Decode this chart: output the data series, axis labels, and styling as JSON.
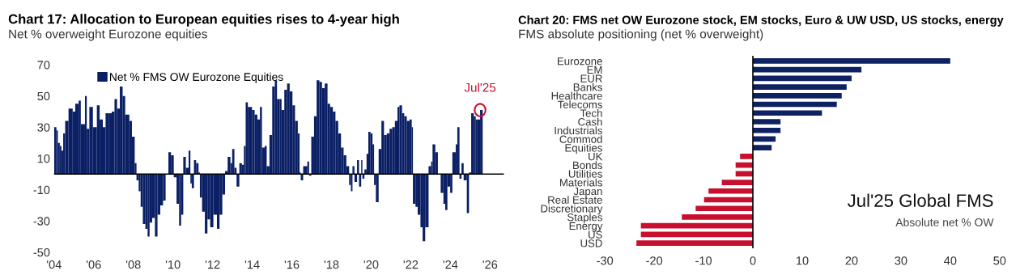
{
  "chart_data": [
    {
      "type": "bar",
      "title": "Chart 17: Allocation to European equities rises to 4-year high",
      "subtitle": "Net % overweight Eurozone equities",
      "x": [
        2004.0,
        2004.12,
        2004.19,
        2004.29,
        2004.37,
        2004.46,
        2004.56,
        2004.73,
        2004.94,
        2005.07,
        2005.24,
        2005.35,
        2005.56,
        2005.65,
        2005.78,
        2005.96,
        2006.16,
        2006.3,
        2006.46,
        2006.6,
        2006.78,
        2006.91,
        2007.05,
        2007.18,
        2007.32,
        2007.46,
        2007.59,
        2007.8,
        2007.93,
        2008.07,
        2008.16,
        2008.27,
        2008.37,
        2008.48,
        2008.61,
        2008.72,
        2008.82,
        2008.95,
        2009.09,
        2009.22,
        2009.36,
        2009.5,
        2009.63,
        2009.77,
        2009.9,
        2010.04,
        2010.18,
        2010.31,
        2010.41,
        2010.52,
        2010.65,
        2010.79,
        2010.88,
        2010.95,
        2011.06,
        2011.17,
        2011.29,
        2011.36,
        2011.47,
        2011.61,
        2011.74,
        2011.88,
        2012.04,
        2012.22,
        2012.35,
        2012.49,
        2012.63,
        2012.76,
        2012.9,
        2012.99,
        2013.1,
        2013.21,
        2013.35,
        2013.48,
        2013.58,
        2013.67,
        2013.78,
        2013.99,
        2014.12,
        2014.26,
        2014.39,
        2014.49,
        2014.63,
        2014.73,
        2014.87,
        2015.01,
        2015.14,
        2015.25,
        2015.39,
        2015.48,
        2015.62,
        2015.76,
        2015.89,
        2016.03,
        2016.16,
        2016.3,
        2016.39,
        2016.45,
        2016.57,
        2016.78,
        2016.87,
        2016.98,
        2017.12,
        2017.25,
        2017.39,
        2017.52,
        2017.66,
        2017.8,
        2017.93,
        2018.07,
        2018.2,
        2018.34,
        2018.48,
        2018.61,
        2018.75,
        2018.89,
        2018.98,
        2019.06,
        2019.16,
        2019.29,
        2019.39,
        2019.5,
        2019.56,
        2019.66,
        2019.77,
        2019.86,
        2019.97,
        2020.07,
        2020.15,
        2020.24,
        2020.38,
        2020.52,
        2020.65,
        2020.79,
        2020.93,
        2021.07,
        2021.2,
        2021.33,
        2021.43,
        2021.56,
        2021.67,
        2021.8,
        2021.94,
        2022.05,
        2022.11,
        2022.24,
        2022.35,
        2022.49,
        2022.6,
        2022.73,
        2022.9,
        2023.03,
        2023.1,
        2023.24,
        2023.37,
        2023.51,
        2023.65,
        2023.74,
        2023.85,
        2023.99,
        2024.1,
        2024.27,
        2024.35,
        2024.46,
        2024.56,
        2024.67,
        2024.83,
        2024.94,
        2025.05,
        2025.18,
        2025.28,
        2025.37,
        2025.5
      ],
      "series": [
        {
          "name": "Net % FMS OW Eurozone Equities",
          "color": "#0b1f65",
          "values": [
            30,
            28,
            20,
            18,
            15,
            26,
            34,
            42,
            40,
            45,
            47,
            32,
            50,
            29,
            43,
            30,
            44,
            35,
            30,
            39,
            39,
            40,
            48,
            42,
            56,
            50,
            38,
            34,
            24,
            7,
            -4,
            -11,
            -21,
            -32,
            -35,
            -40,
            -31,
            -28,
            -40,
            -26,
            -20,
            -17,
            null,
            14,
            12,
            -2,
            -19,
            -33,
            -26,
            11,
            4,
            15,
            -6,
            -9,
            9,
            7,
            1,
            -15,
            -24,
            -38,
            -29,
            -34,
            -26,
            -35,
            -26,
            -13,
            2,
            11,
            7,
            16,
            4,
            -8,
            7,
            6,
            18,
            46,
            43,
            41,
            38,
            35,
            43,
            17,
            18,
            5,
            25,
            56,
            60,
            48,
            48,
            41,
            54,
            58,
            53,
            44,
            34,
            26,
            1,
            -4,
            5,
            8,
            -1,
            24,
            37,
            60,
            59,
            55,
            58,
            45,
            43,
            40,
            34,
            26,
            17,
            12,
            5,
            -7,
            -11,
            5,
            -5,
            9,
            -8,
            9,
            -3,
            3,
            13,
            27,
            26,
            19,
            -7,
            -18,
            16,
            34,
            25,
            26,
            29,
            30,
            34,
            43,
            44,
            39,
            37,
            34,
            35,
            30,
            -19,
            -21,
            -26,
            -34,
            -43,
            -34,
            5,
            8,
            19,
            14,
            null,
            -12,
            -19,
            -23,
            -8,
            -12,
            14,
            19,
            30,
            -3,
            7,
            -4,
            -25,
            1,
            39,
            37,
            35,
            35,
            41
          ]
        }
      ],
      "xlim": [
        2004,
        2026.7
      ],
      "xticks": [
        {
          "value": 2004,
          "label": "'04"
        },
        {
          "value": 2006,
          "label": "'06"
        },
        {
          "value": 2008,
          "label": "'08"
        },
        {
          "value": 2010,
          "label": "'10"
        },
        {
          "value": 2012,
          "label": "'12"
        },
        {
          "value": 2014,
          "label": "'14"
        },
        {
          "value": 2016,
          "label": "'16"
        },
        {
          "value": 2018,
          "label": "'18"
        },
        {
          "value": 2020,
          "label": "'20"
        },
        {
          "value": 2022,
          "label": "'22"
        },
        {
          "value": 2024,
          "label": "'24"
        },
        {
          "value": 2026,
          "label": "'26"
        }
      ],
      "ylim": [
        -50,
        70
      ],
      "yticks": [
        -50,
        -30,
        -10,
        10,
        30,
        50,
        70
      ],
      "legend": "top left",
      "ref_lines": [
        {
          "axis": "y",
          "value": 0,
          "color": "#000000"
        }
      ],
      "annotations": [
        {
          "text": "Jul'25",
          "x": 2025.5,
          "y": 41
        }
      ]
    },
    {
      "type": "bar",
      "orientation": "horizontal",
      "title": "Chart 20: FMS net OW Eurozone stock, EM stocks, Euro & UW USD, US stocks, energy",
      "subtitle": "FMS absolute positioning (net % overweight)",
      "categories": [
        "Eurozone",
        "EM",
        "EUR",
        "Banks",
        "Healthcare",
        "Telecoms",
        "Tech",
        "Cash",
        "Industrials",
        "Commod",
        "Equities",
        "UK",
        "Bonds",
        "Utilities",
        "Materials",
        "Japan",
        "Real Estate",
        "Discretionary",
        "Staples",
        "Energy",
        "US",
        "USD"
      ],
      "values": [
        40,
        22,
        20,
        19,
        18,
        17,
        14,
        5.6,
        5.6,
        4.6,
        3.8,
        -2.6,
        -3.5,
        -3.5,
        -6.3,
        -9,
        -9.9,
        -11.6,
        -14.4,
        -22.7,
        -22.7,
        -23.6
      ],
      "colors": [
        "#0d2163",
        "#0d2163",
        "#0d2163",
        "#0d2163",
        "#0d2163",
        "#0d2163",
        "#0d2163",
        "#0d2163",
        "#0d2163",
        "#0d2163",
        "#0d2163",
        "#c8102e",
        "#c8102e",
        "#c8102e",
        "#c8102e",
        "#c8102e",
        "#c8102e",
        "#c8102e",
        "#c8102e",
        "#c8102e",
        "#c8102e",
        "#c8102e"
      ],
      "xlim": [
        -30,
        50
      ],
      "xticks": [
        -30,
        -20,
        -10,
        0,
        10,
        20,
        30,
        40,
        50
      ],
      "ref_lines": [
        {
          "axis": "x",
          "value": 0,
          "color": "#000000"
        }
      ],
      "annotations": [
        "Jul'25 Global FMS",
        "Absolute net % OW"
      ]
    }
  ]
}
